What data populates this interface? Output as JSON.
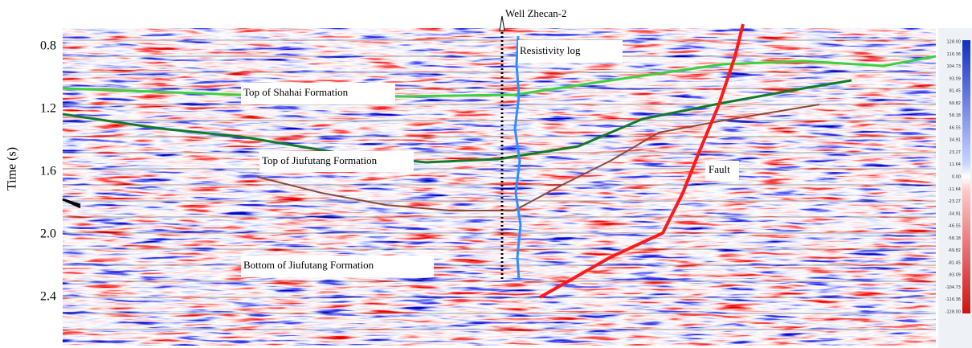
{
  "figure": {
    "y_axis_label": "Time (s)",
    "y_ticks": [
      "0.8",
      "1.2",
      "1.6",
      "2.0",
      "2.4"
    ],
    "well_label": "Well Zhecan-2",
    "annotations": {
      "resistivity": "Resistivity log",
      "shahai_top": "Top of  Shahai Formation",
      "jiufutang_top": "Top of Jiufutang Formation",
      "fault": "Fault",
      "jiufutang_bottom": "Bottom of Jiufutang Formation"
    },
    "colorbar_ticks": [
      "128.00",
      "116.36",
      "104.73",
      "93.09",
      "81.45",
      "69.82",
      "58.18",
      "46.55",
      "34.91",
      "23.27",
      "11.64",
      "0.00",
      "-11.64",
      "-23.27",
      "-34.91",
      "-46.55",
      "-58.18",
      "-69.82",
      "-81.45",
      "-93.09",
      "-104.73",
      "-116.36",
      "-128.00"
    ]
  }
}
